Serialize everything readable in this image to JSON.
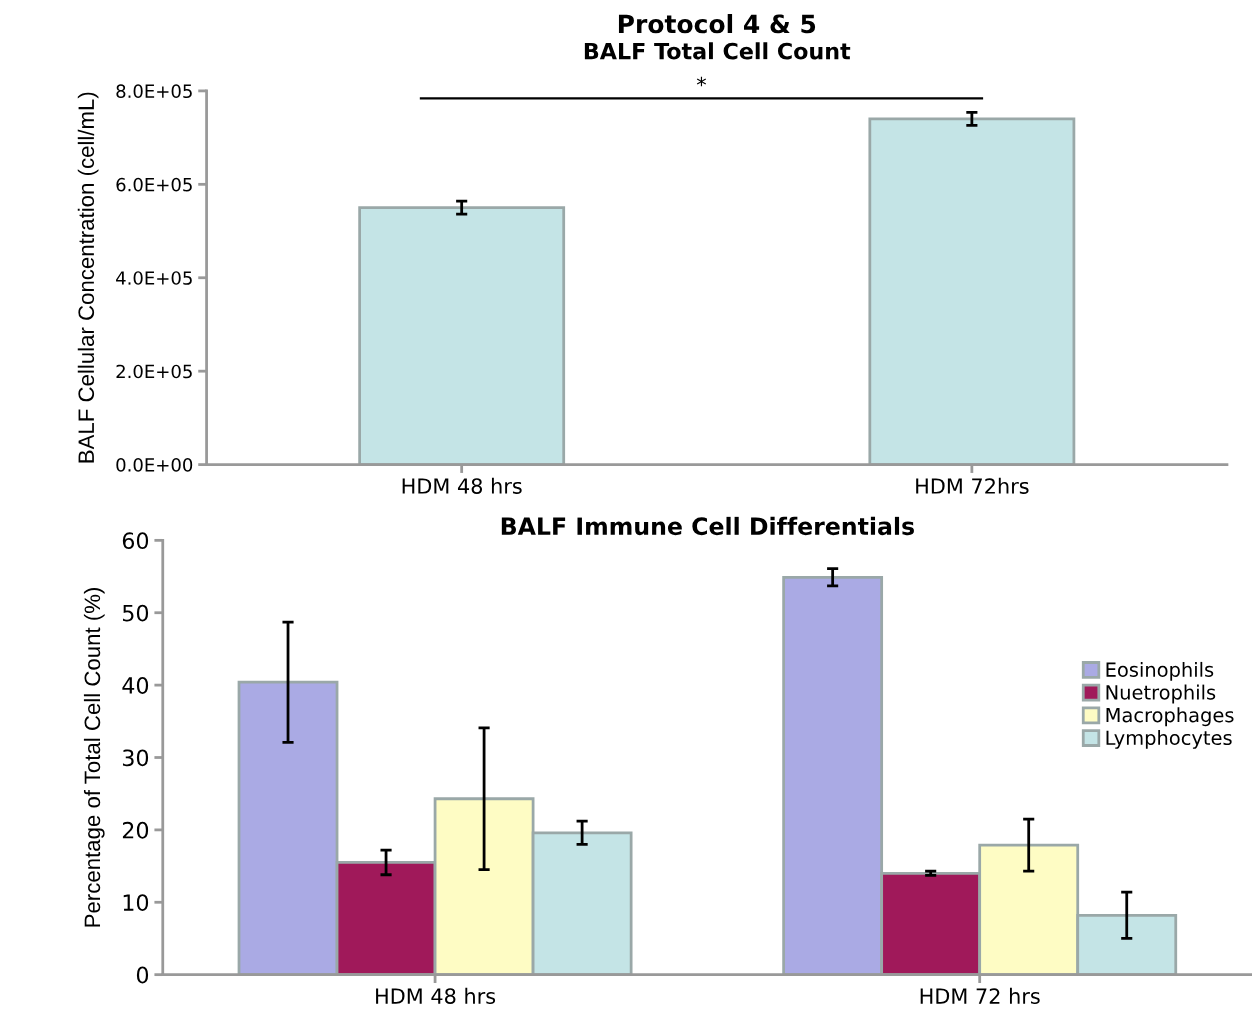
{
  "chart_data": [
    {
      "type": "bar",
      "title": "Protocol 4 & 5",
      "subtitle": "BALF Total Cell Count",
      "ylabel": "BALF Cellular Concentration (cell/mL)",
      "categories": [
        "HDM 48 hrs",
        "HDM 72hrs"
      ],
      "values": [
        550000,
        740000
      ],
      "errors": [
        14000,
        14000
      ],
      "color": "#c4e4e6",
      "ylim": [
        0,
        800000
      ],
      "yticks": [
        {
          "value": 0,
          "label": "0.0E+00"
        },
        {
          "value": 200000,
          "label": "2.0E+05"
        },
        {
          "value": 400000,
          "label": "4.0E+05"
        },
        {
          "value": 600000,
          "label": "6.0E+05"
        },
        {
          "value": 800000,
          "label": "8.0E+05"
        }
      ],
      "annotations": [
        "*"
      ],
      "grid": false,
      "legend": false
    },
    {
      "type": "bar",
      "title": "BALF Immune Cell Differentials",
      "ylabel": "Percentage of Total Cell Count (%)",
      "categories": [
        "HDM 48 hrs",
        "HDM 72 hrs"
      ],
      "series": [
        {
          "name": "Eosinophils",
          "color": "#aaaae4",
          "values": [
            40.4,
            54.9
          ],
          "errors": [
            8.3,
            1.2
          ]
        },
        {
          "name": "Nuetrophils",
          "color": "#a0195a",
          "values": [
            15.5,
            14.0
          ],
          "errors": [
            1.7,
            0.3
          ]
        },
        {
          "name": "Macrophages",
          "color": "#fefcc4",
          "values": [
            24.3,
            17.9
          ],
          "errors": [
            9.8,
            3.6
          ]
        },
        {
          "name": "Lymphocytes",
          "color": "#c4e4e6",
          "values": [
            19.6,
            8.2
          ],
          "errors": [
            1.6,
            3.2
          ]
        }
      ],
      "ylim": [
        0,
        60
      ],
      "yticks": [
        0,
        10,
        20,
        30,
        40,
        50,
        60
      ],
      "grid": false,
      "legend": "right"
    }
  ]
}
